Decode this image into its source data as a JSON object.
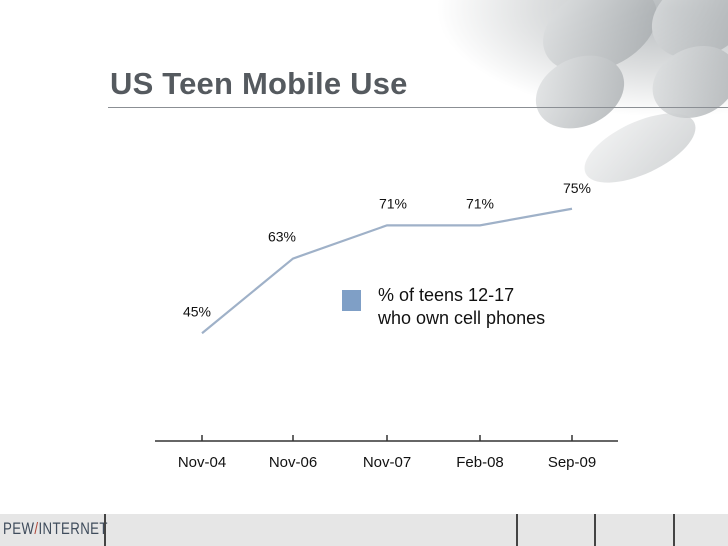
{
  "slide": {
    "title": "US Teen Mobile Use",
    "footer_logo_left": "PEW",
    "footer_logo_slash": "/",
    "footer_logo_right": "INTERNET"
  },
  "chart_data": {
    "type": "line",
    "categories": [
      "Nov-04",
      "Nov-06",
      "Nov-07",
      "Feb-08",
      "Sep-09"
    ],
    "series": [
      {
        "name": "% of teens 12-17 who own cell phones",
        "values": [
          45,
          63,
          71,
          71,
          75
        ]
      }
    ],
    "data_labels": [
      "45%",
      "63%",
      "71%",
      "71%",
      "75%"
    ],
    "legend_lines": [
      "% of teens 12-17",
      "who own cell phones"
    ],
    "legend_position": "center-right",
    "ylim": [
      0,
      80
    ],
    "grid": false,
    "colors": {
      "line": "#9fb1c8",
      "legend_swatch": "#7f9fc6",
      "axis": "#333333",
      "text": "#111111"
    }
  }
}
